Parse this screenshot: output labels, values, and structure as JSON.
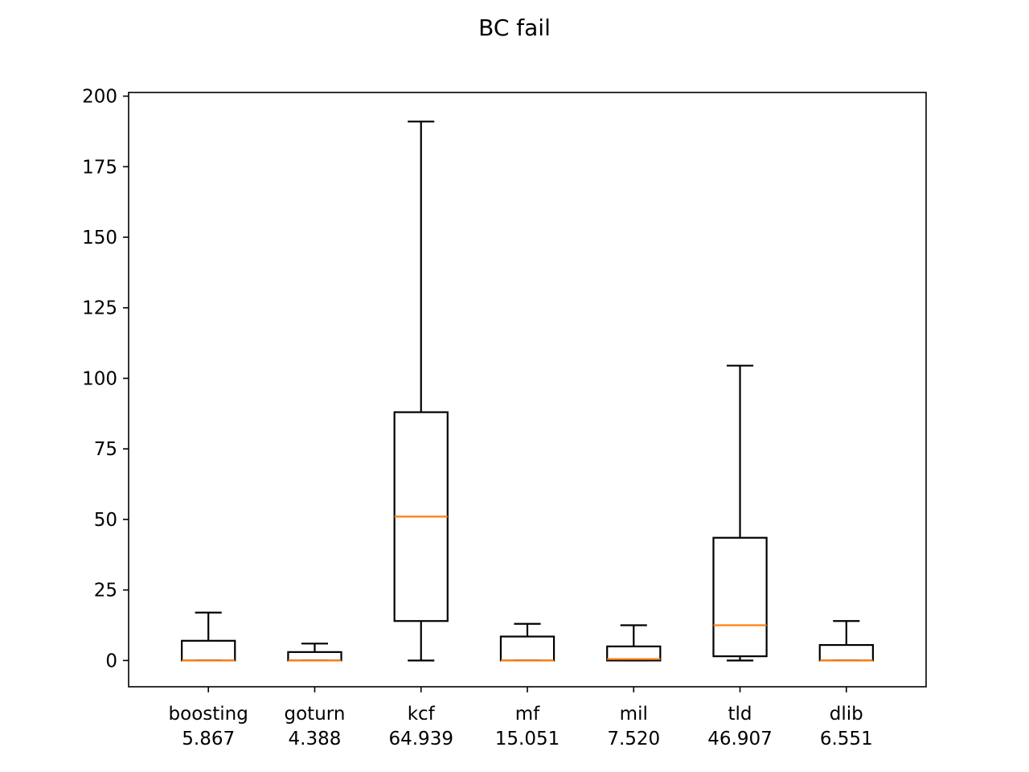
{
  "chart_data": {
    "type": "box",
    "title": "BC fail",
    "xlabel": "",
    "ylabel": "",
    "ylim": [
      -9.3,
      201.3
    ],
    "yticks": [
      0,
      25,
      50,
      75,
      100,
      125,
      150,
      175,
      200
    ],
    "grid": false,
    "categories": [
      {
        "name": "boosting",
        "score": "5.867",
        "whisker_low": 0,
        "q1": 0,
        "median": 0,
        "q3": 7,
        "whisker_high": 17
      },
      {
        "name": "goturn",
        "score": "4.388",
        "whisker_low": 0,
        "q1": 0,
        "median": 0,
        "q3": 3,
        "whisker_high": 6
      },
      {
        "name": "kcf",
        "score": "64.939",
        "whisker_low": 0,
        "q1": 14,
        "median": 51,
        "q3": 88,
        "whisker_high": 191
      },
      {
        "name": "mf",
        "score": "15.051",
        "whisker_low": 0,
        "q1": 0,
        "median": 0,
        "q3": 8.5,
        "whisker_high": 13
      },
      {
        "name": "mil",
        "score": "7.520",
        "whisker_low": 0,
        "q1": 0,
        "median": 0.5,
        "q3": 5,
        "whisker_high": 12.5
      },
      {
        "name": "tld",
        "score": "46.907",
        "whisker_low": 0,
        "q1": 1.5,
        "median": 12.5,
        "q3": 43.5,
        "whisker_high": 104.5
      },
      {
        "name": "dlib",
        "score": "6.551",
        "whisker_low": 0,
        "q1": 0,
        "median": 0,
        "q3": 5.5,
        "whisker_high": 14
      }
    ],
    "colors": {
      "box": "#000000",
      "median": "#ff7f0e",
      "axes": "#000000"
    }
  }
}
